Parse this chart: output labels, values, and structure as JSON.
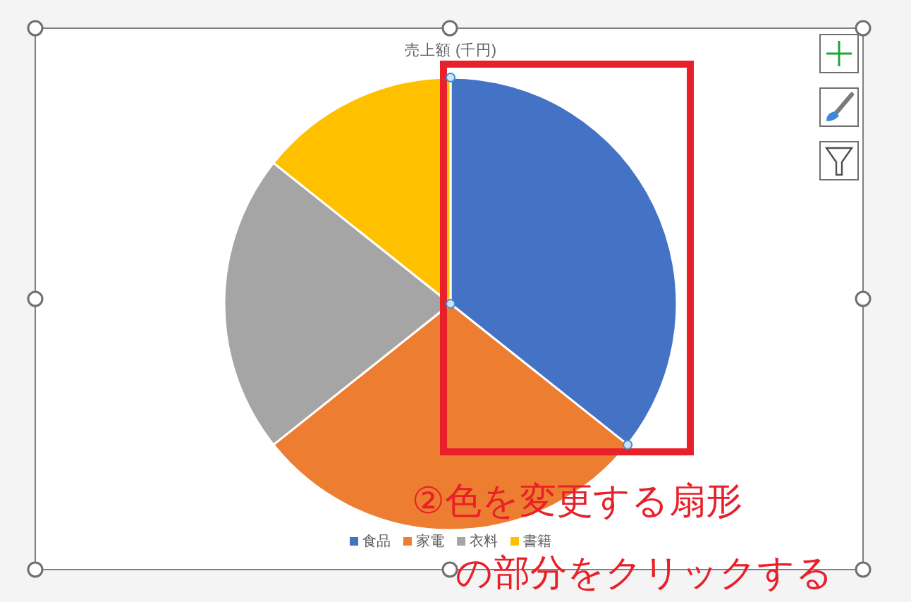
{
  "chart_data": {
    "type": "pie",
    "title": "売上額 (千円)",
    "categories": [
      "食品",
      "家電",
      "衣料",
      "書籍"
    ],
    "values": [
      35.7,
      28.6,
      21.4,
      14.3
    ],
    "colors": [
      "#4472c4",
      "#ed7d31",
      "#a5a5a5",
      "#ffc000"
    ],
    "legend": "bottom",
    "annotations": [
      "②色を変更する扇形",
      "の部分をクリックする"
    ]
  }
}
